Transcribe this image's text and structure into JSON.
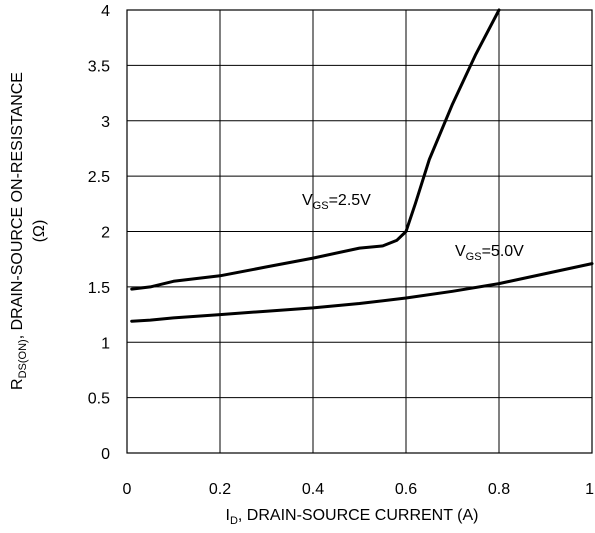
{
  "chart_data": {
    "type": "line",
    "title": "",
    "xlabel": {
      "main": "I",
      "sub": "D",
      "rest": ", DRAIN-SOURCE CURRENT (A)"
    },
    "ylabel": {
      "line1_main": "R",
      "line1_sub": "DS(ON)",
      "line1_rest": ", DRAIN-SOURCE ON-RESISTANCE",
      "line2": "(Ω)"
    },
    "xlim": [
      0,
      1
    ],
    "ylim": [
      0,
      4
    ],
    "x_ticks": [
      "0",
      "0.2",
      "0.4",
      "0.6",
      "0.8",
      "1"
    ],
    "y_ticks": [
      "0",
      "0.5",
      "1",
      "1.5",
      "2",
      "2.5",
      "3",
      "3.5",
      "4"
    ],
    "grid": true,
    "series": [
      {
        "label_main": "V",
        "label_sub": "GS",
        "label_rest": "=2.5V",
        "x": [
          0.01,
          0.05,
          0.1,
          0.2,
          0.3,
          0.4,
          0.5,
          0.55,
          0.58,
          0.6,
          0.62,
          0.65,
          0.7,
          0.75,
          0.8
        ],
        "y": [
          1.48,
          1.5,
          1.55,
          1.6,
          1.68,
          1.76,
          1.85,
          1.87,
          1.92,
          2.0,
          2.25,
          2.65,
          3.15,
          3.6,
          4.0
        ]
      },
      {
        "label_main": "V",
        "label_sub": "GS",
        "label_rest": "=5.0V",
        "x": [
          0.01,
          0.05,
          0.1,
          0.2,
          0.3,
          0.4,
          0.5,
          0.6,
          0.7,
          0.8,
          0.9,
          1.0
        ],
        "y": [
          1.19,
          1.2,
          1.22,
          1.25,
          1.28,
          1.31,
          1.35,
          1.4,
          1.46,
          1.53,
          1.62,
          1.71
        ]
      }
    ]
  }
}
